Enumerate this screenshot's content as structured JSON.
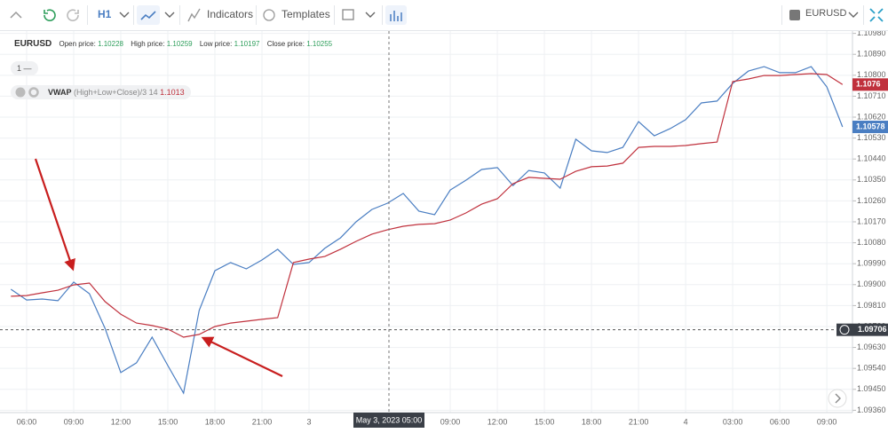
{
  "toolbar": {
    "interval": "H1",
    "indicators": "Indicators",
    "templates": "Templates"
  },
  "legend": {
    "open_label": "Open price:",
    "open": 1.10228,
    "high_label": "High price:",
    "high": 1.10259,
    "low_label": "Low price:",
    "low": 1.10197,
    "close_label": "Close price:",
    "close": 1.10255
  },
  "indicator": {
    "counter": "1 —",
    "params": "(High+Low+Close)/3 14",
    "value": 1.1013
  },
  "chart_data": {
    "type": "line",
    "categories": [
      null,
      "06:00",
      null,
      null,
      "09:00",
      null,
      null,
      "12:00",
      null,
      null,
      "15:00",
      null,
      null,
      "18:00",
      null,
      null,
      "21:00",
      null,
      null,
      "3",
      null,
      null,
      null,
      null,
      null,
      null,
      null,
      null,
      "09:00",
      null,
      null,
      "12:00",
      null,
      null,
      "15:00",
      null,
      null,
      "18:00",
      null,
      null,
      "21:00",
      null,
      null,
      "4",
      null,
      null,
      "03:00",
      null,
      null,
      "06:00",
      null,
      null,
      "09:00",
      null
    ],
    "series": [
      {
        "name": "EURUSD",
        "color": "#4a7ec2",
        "values": [
          1.0988,
          1.09834,
          1.09838,
          1.09831,
          1.09911,
          1.09861,
          1.09712,
          1.09522,
          1.09564,
          1.09674,
          1.09552,
          1.09434,
          1.09789,
          1.0996,
          1.09995,
          1.09968,
          1.10006,
          1.10052,
          1.09987,
          1.09995,
          1.10056,
          1.10101,
          1.1017,
          1.10223,
          1.1025,
          1.10292,
          1.10216,
          1.10201,
          1.10307,
          1.10349,
          1.10395,
          1.10403,
          1.10326,
          1.10391,
          1.1038,
          1.10315,
          1.10525,
          1.10475,
          1.10468,
          1.1049,
          1.10601,
          1.1054,
          1.1057,
          1.10609,
          1.10681,
          1.10689,
          1.10765,
          1.10818,
          1.10837,
          1.10811,
          1.10811,
          1.10837,
          1.1075,
          1.10578
        ]
      },
      {
        "name": "VWAP",
        "color": "#c0313d",
        "values": [
          1.0985,
          1.09853,
          1.09865,
          1.09876,
          1.09899,
          1.09907,
          1.09827,
          1.09773,
          1.09735,
          1.09724,
          1.09709,
          1.09674,
          1.09686,
          1.0972,
          1.09735,
          1.09743,
          1.09751,
          1.09758,
          1.09995,
          1.1001,
          1.10021,
          1.10052,
          1.10086,
          1.10117,
          1.10136,
          1.10151,
          1.10159,
          1.10162,
          1.10178,
          1.10208,
          1.10246,
          1.10269,
          1.10334,
          1.10361,
          1.10357,
          1.10353,
          1.10387,
          1.10407,
          1.1041,
          1.10422,
          1.1049,
          1.10494,
          1.10494,
          1.10498,
          1.10506,
          1.10513,
          1.10773,
          1.10784,
          1.10799,
          1.10799,
          1.10803,
          1.10807,
          1.10803,
          1.1076
        ]
      }
    ],
    "ylim": [
      1.0935,
      1.1099
    ],
    "yticks": [
      {
        "value": 1.1098,
        "label": "1.10980"
      },
      {
        "value": 1.1089,
        "label": "1.10890"
      },
      {
        "value": 1.108,
        "label": "1.10800"
      },
      {
        "value": 1.1071,
        "label": "1.10710"
      },
      {
        "value": 1.1062,
        "label": "1.10620"
      },
      {
        "value": 1.1053,
        "label": "1.10530"
      },
      {
        "value": 1.1044,
        "label": "1.10440"
      },
      {
        "value": 1.1035,
        "label": "1.10350"
      },
      {
        "value": 1.1026,
        "label": "1.10260"
      },
      {
        "value": 1.1017,
        "label": "1.10170"
      },
      {
        "value": 1.1008,
        "label": "1.10080"
      },
      {
        "value": 1.0999,
        "label": "1.09990"
      },
      {
        "value": 1.099,
        "label": "1.09900"
      },
      {
        "value": 1.0981,
        "label": "1.09810"
      },
      {
        "value": 1.0972,
        "label": "1.09720"
      },
      {
        "value": 1.0963,
        "label": "1.09630"
      },
      {
        "value": 1.0954,
        "label": "1.09540"
      },
      {
        "value": 1.0945,
        "label": "1.09450"
      },
      {
        "value": 1.0936,
        "label": "1.09360"
      }
    ],
    "grid": true,
    "crosshair": {
      "x": "May 3, 2023 05:00",
      "y": 1.09706
    }
  }
}
